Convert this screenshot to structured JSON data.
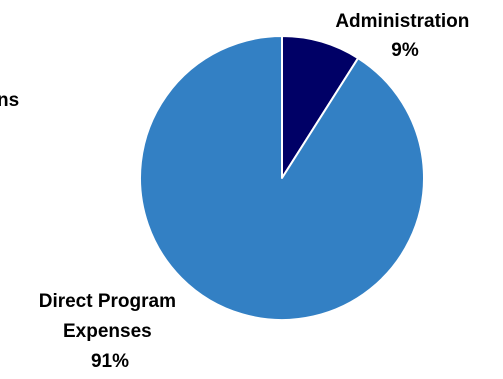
{
  "chart_data": {
    "type": "pie",
    "title": "",
    "legend": "none",
    "start_angle_deg": 0,
    "direction": "clockwise",
    "slices": [
      {
        "label_lines": [
          "Administration",
          "9%"
        ],
        "value": 9,
        "color": "#000066"
      },
      {
        "label_lines": [
          "Direct Program",
          "Expenses",
          "91%"
        ],
        "value": 91,
        "color": "#3380C4"
      }
    ],
    "cropped_label": "ns"
  }
}
